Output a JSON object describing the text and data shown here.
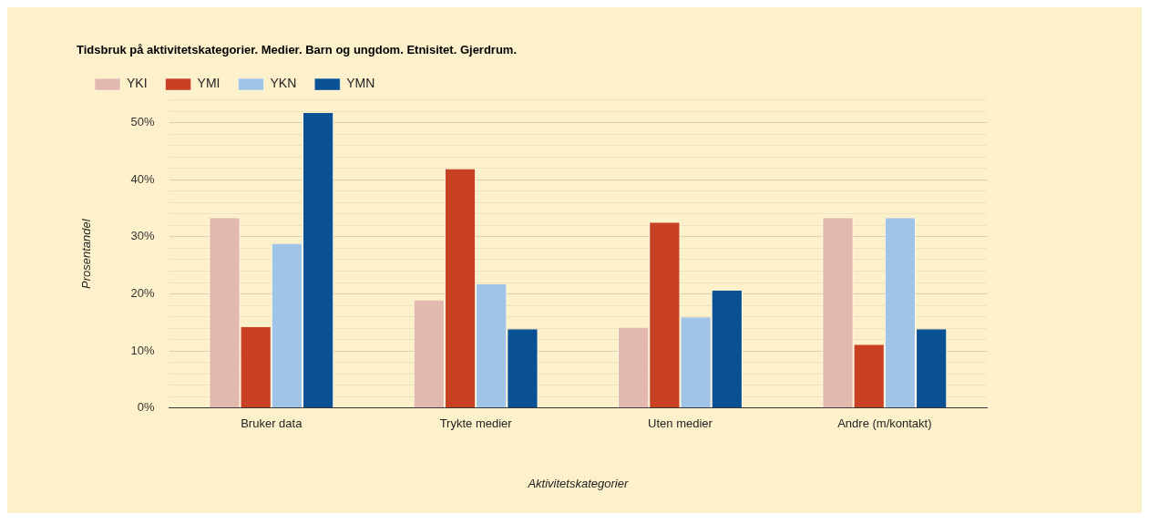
{
  "chart_data": {
    "type": "bar",
    "title": "Tidsbruk på aktivitetskategorier. Medier. Barn og ungdom. Etnisitet. Gjerdrum.",
    "xlabel": "Aktivitetskategorier",
    "ylabel": "Prosentandel",
    "categories": [
      "Bruker data",
      "Trykte medier",
      "Uten medier",
      "Andre (m/kontakt)"
    ],
    "series": [
      {
        "name": "YKI",
        "color": "#e3b8ae",
        "values": [
          33.3,
          18.9,
          14.1,
          33.3
        ]
      },
      {
        "name": "YMI",
        "color": "#c94123",
        "values": [
          14.2,
          41.9,
          32.5,
          11.1
        ]
      },
      {
        "name": "YKN",
        "color": "#a0c4e6",
        "values": [
          28.8,
          21.7,
          15.9,
          33.3
        ]
      },
      {
        "name": "YMN",
        "color": "#0a5193",
        "values": [
          51.7,
          13.8,
          20.6,
          13.8
        ]
      }
    ],
    "ylim": [
      0,
      54
    ],
    "yticks": [
      {
        "value": 0,
        "label": "0%"
      },
      {
        "value": 2,
        "label": null
      },
      {
        "value": 4,
        "label": null
      },
      {
        "value": 6,
        "label": null
      },
      {
        "value": 8,
        "label": null
      },
      {
        "value": 10,
        "label": "10%"
      },
      {
        "value": 12,
        "label": null
      },
      {
        "value": 14,
        "label": null
      },
      {
        "value": 16,
        "label": null
      },
      {
        "value": 18,
        "label": null
      },
      {
        "value": 20,
        "label": "20%"
      },
      {
        "value": 22,
        "label": null
      },
      {
        "value": 24,
        "label": null
      },
      {
        "value": 26,
        "label": null
      },
      {
        "value": 28,
        "label": null
      },
      {
        "value": 30,
        "label": "30%"
      },
      {
        "value": 32,
        "label": null
      },
      {
        "value": 34,
        "label": null
      },
      {
        "value": 36,
        "label": null
      },
      {
        "value": 38,
        "label": null
      },
      {
        "value": 40,
        "label": "40%"
      },
      {
        "value": 42,
        "label": null
      },
      {
        "value": 44,
        "label": null
      },
      {
        "value": 46,
        "label": null
      },
      {
        "value": 48,
        "label": null
      },
      {
        "value": 50,
        "label": "50%"
      },
      {
        "value": 52,
        "label": null
      },
      {
        "value": 54,
        "label": null
      }
    ],
    "grid": "y",
    "legend": "top left"
  }
}
